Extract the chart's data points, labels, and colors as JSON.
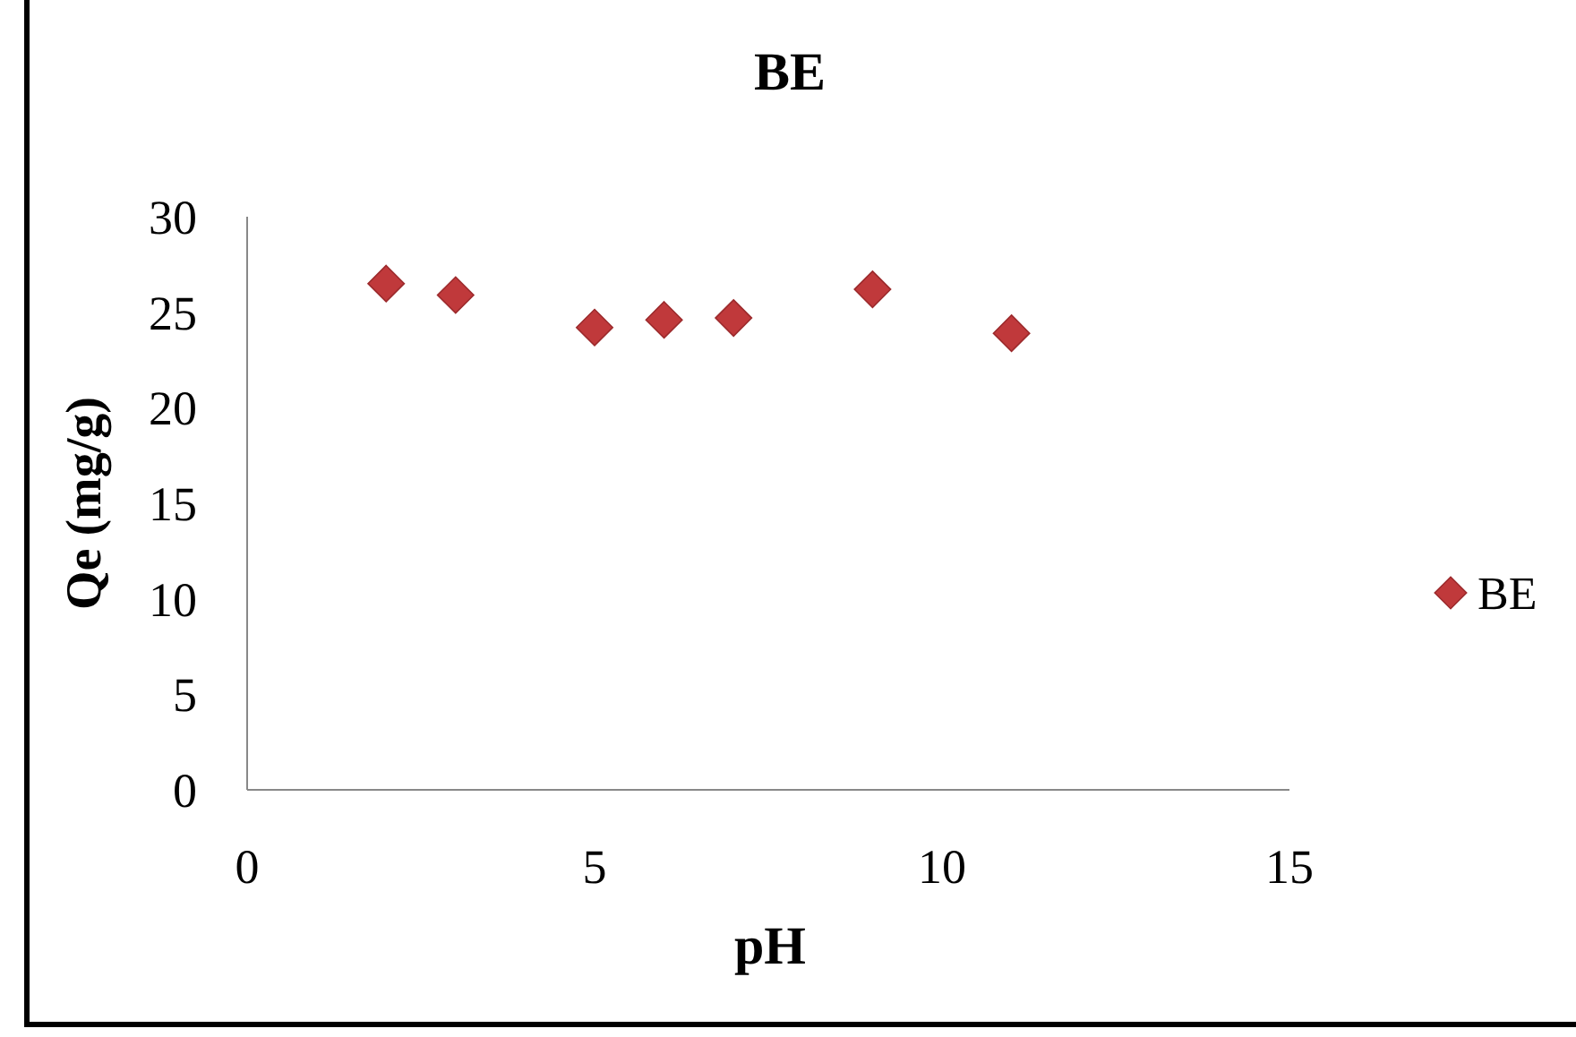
{
  "chart_data": {
    "type": "scatter",
    "title": "BE",
    "xlabel": "pH",
    "ylabel": "Qe (mg/g)",
    "x": [
      2,
      3,
      5,
      6,
      7,
      9,
      11
    ],
    "series": [
      {
        "name": "BE",
        "color": "#c0393b",
        "values": [
          26.5,
          25.9,
          24.2,
          24.6,
          24.7,
          26.2,
          23.9
        ]
      }
    ],
    "xlim": [
      0,
      15
    ],
    "xticks": [
      0,
      5,
      10,
      15
    ],
    "ylim": [
      0,
      30
    ],
    "yticks": [
      0,
      5,
      10,
      15,
      20,
      25,
      30
    ],
    "grid": false,
    "legend": "right",
    "marker": "diamond"
  }
}
